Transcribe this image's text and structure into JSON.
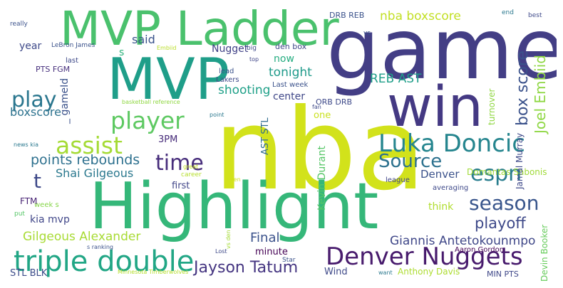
{
  "cloud": {
    "words": {
      "nba": {
        "text": "nba",
        "color": "#d2e21b"
      },
      "game": {
        "text": "game",
        "color": "#433e85"
      },
      "highlight": {
        "text": "Highlight",
        "color": "#35b779"
      },
      "mvp_ladder": {
        "text": "MVP Ladder",
        "color": "#4ac16d"
      },
      "mvp": {
        "text": "MVP",
        "color": "#1f9e89"
      },
      "win": {
        "text": "win",
        "color": "#443983"
      },
      "triple_double": {
        "text": "triple double",
        "color": "#21a685"
      },
      "denver_nuggets": {
        "text": "Denver Nuggets",
        "color": "#481b6d"
      },
      "luka_doncic": {
        "text": "Luka Doncic",
        "color": "#25858e"
      },
      "player": {
        "text": "player",
        "color": "#5ec962"
      },
      "assist": {
        "text": "assist",
        "color": "#a5db36"
      },
      "play": {
        "text": "play",
        "color": "#2a768e"
      },
      "source": {
        "text": "Source",
        "color": "#2c718e"
      },
      "espn": {
        "text": "espn",
        "color": "#287d8e"
      },
      "time": {
        "text": "time",
        "color": "#472d7b"
      },
      "season": {
        "text": "season",
        "color": "#39568c"
      },
      "jayson_tatum": {
        "text": "Jayson Tatum",
        "color": "#453581"
      },
      "playoff": {
        "text": "playoff",
        "color": "#3e4989"
      },
      "points_rebounds": {
        "text": "points rebounds",
        "color": "#2d708e"
      },
      "box_score": {
        "text": "box score",
        "color": "#3b528b"
      },
      "joel_embiid": {
        "text": "Joel Embiid",
        "color": "#8fd744"
      },
      "t": {
        "text": "t",
        "color": "#3e4989"
      },
      "shai": {
        "text": "Shai Gilgeous",
        "color": "#2a788e"
      },
      "giannis": {
        "text": "Giannis Antetokounmpo",
        "color": "#3f4788"
      },
      "gilgeous_alexander": {
        "text": "Gilgeous Alexander",
        "color": "#a8db34"
      },
      "final": {
        "text": "Final",
        "color": "#3b528b"
      },
      "nba_boxscore": {
        "text": "nba boxscore",
        "color": "#c2df23"
      },
      "tonight": {
        "text": "tonight",
        "color": "#1f9a8a"
      },
      "shooting": {
        "text": "shooting",
        "color": "#1fa088"
      },
      "reb_ast": {
        "text": "REB AST",
        "color": "#1f9e89"
      },
      "boxscore": {
        "text": "boxscore",
        "color": "#2c728e"
      },
      "said": {
        "text": "said",
        "color": "#3a538b"
      },
      "gameid": {
        "text": "_ gameId",
        "color": "#3b528b"
      },
      "kevin_durant": {
        "text": "Kevin Durant",
        "color": "#56c667"
      },
      "ast_stl": {
        "text": "AST STL",
        "color": "#2f6c8e"
      },
      "denver": {
        "text": "Denver",
        "color": "#3b528b"
      },
      "kia_mvp": {
        "text": "kia mvp",
        "color": "#404688"
      },
      "year": {
        "text": "year",
        "color": "#3e4989"
      },
      "now": {
        "text": "now",
        "color": "#26ad81"
      },
      "center": {
        "text": "center",
        "color": "#3f4788"
      },
      "nugget": {
        "text": "Nugget",
        "color": "#414287"
      },
      "s_mid": {
        "text": "s",
        "color": "#2eb37c"
      },
      "pm3": {
        "text": "3PM",
        "color": "#472c7a"
      },
      "first": {
        "text": "first",
        "color": "#404588"
      },
      "think": {
        "text": "think",
        "color": "#b0dd2f"
      },
      "minute": {
        "text": "minute",
        "color": "#440154"
      },
      "wind": {
        "text": "Wind",
        "color": "#3e4989"
      },
      "stl_blk": {
        "text": "STL BLK",
        "color": "#3d4d8a"
      },
      "ftm": {
        "text": "FTM",
        "color": "#482374"
      },
      "domantas": {
        "text": "Domantas Sabonis",
        "color": "#a0da39"
      },
      "jamal_murray": {
        "text": "Jamal Murray",
        "color": "#3e4989"
      },
      "devin_booker": {
        "text": "Devin Booker",
        "color": "#67cc5c"
      },
      "anthony_davis": {
        "text": "Anthony Davis",
        "color": "#addc30"
      },
      "turnover": {
        "text": "turnover",
        "color": "#90d743"
      },
      "drb_reb": {
        "text": "DRB REB",
        "color": "#3b528b"
      },
      "orb_drb": {
        "text": "ORB DRB",
        "color": "#3e4989"
      },
      "lebron": {
        "text": "LeBron James",
        "color": "#3b528b"
      },
      "pts_fgm": {
        "text": "PTS FGM",
        "color": "#462f7c"
      },
      "last_week": {
        "text": "Last week",
        "color": "#3b528b"
      },
      "den_box": {
        "text": "den box",
        "color": "#404688"
      },
      "min_pts": {
        "text": "MIN PTS",
        "color": "#3f4788"
      },
      "aaron_gordon": {
        "text": "Aaron Gordon",
        "color": "#440154"
      },
      "lakers": {
        "text": "Lakers",
        "color": "#3e4989"
      },
      "lead": {
        "text": "lead",
        "color": "#3b528b"
      },
      "one": {
        "text": "one",
        "color": "#cae11f"
      },
      "league": {
        "text": "league",
        "color": "#404588"
      },
      "averaging": {
        "text": "averaging",
        "color": "#3e4989"
      },
      "put": {
        "text": "put",
        "color": "#56c667"
      },
      "week_s": {
        "text": "week s",
        "color": "#86d549"
      },
      "really": {
        "text": "really",
        "color": "#3b528b"
      },
      "embiid": {
        "text": "Embiid",
        "color": "#bade28"
      },
      "last": {
        "text": "last",
        "color": "#3e4989"
      },
      "big": {
        "text": "big",
        "color": "#3e4989"
      },
      "top": {
        "text": "top",
        "color": "#404688"
      },
      "bball_ref": {
        "text": "basketball reference",
        "color": "#90d743"
      },
      "news_kia": {
        "text": "news kia",
        "color": "#2a788e"
      },
      "great": {
        "text": "great",
        "color": "#c5e021"
      },
      "career": {
        "text": "career",
        "color": "#b5de2b"
      },
      "even": {
        "text": "even",
        "color": "#d0e11c"
      },
      "point": {
        "text": "point",
        "color": "#2a788e"
      },
      "fan": {
        "text": "fan",
        "color": "#3e4989"
      },
      "vs": {
        "text": "vs",
        "color": "#3b528b"
      },
      "vs_den": {
        "text": "vs den",
        "color": "#a5db36"
      },
      "end": {
        "text": "end",
        "color": "#2a788e"
      },
      "best": {
        "text": "best",
        "color": "#3e4989"
      },
      "s_ranking": {
        "text": "s ranking",
        "color": "#3b528b"
      },
      "lost": {
        "text": "Lost",
        "color": "#3e4989"
      },
      "star": {
        "text": "Star",
        "color": "#3b528b"
      },
      "want": {
        "text": "want",
        "color": "#2a788e"
      },
      "minnesota": {
        "text": "Minnesota Timberwolves",
        "color": "#b5de2b"
      },
      "s_small": {
        "text": "s",
        "color": "#2a788e"
      }
    }
  }
}
